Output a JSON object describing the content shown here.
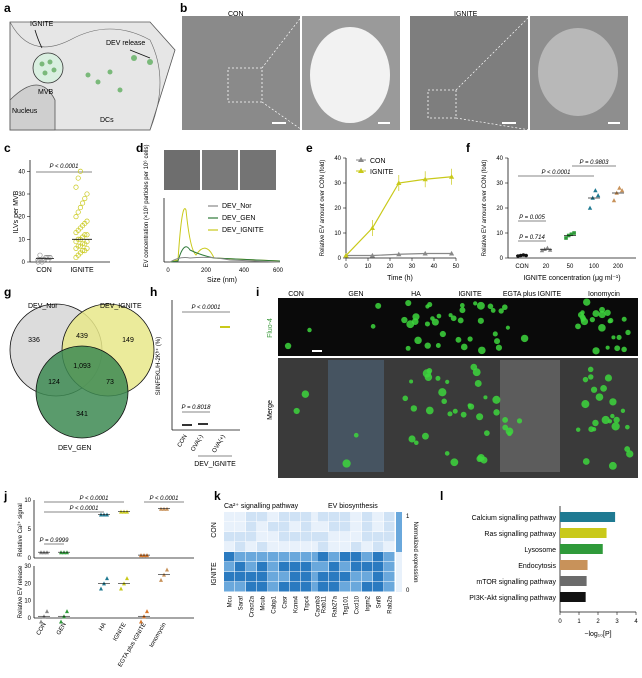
{
  "panels": {
    "a": "a",
    "b": "b",
    "c": "c",
    "d": "d",
    "e": "e",
    "f": "f",
    "g": "g",
    "h": "h",
    "i": "i",
    "j": "j",
    "k": "k",
    "l": "l"
  },
  "panel_a": {
    "ignite": "IGNITE",
    "dev_release": "DEV release",
    "mvb": "MVB",
    "nucleus": "Nucleus",
    "dcs": "DCs"
  },
  "panel_b": {
    "con": "CON",
    "ignite": "IGNITE"
  },
  "panel_c": {
    "ylabel": "ILVs per MVB",
    "pval": "P < 0.0001",
    "xticks": [
      "CON",
      "IGNITE"
    ],
    "yticks": [
      "0",
      "10",
      "20",
      "30",
      "40"
    ]
  },
  "panel_d": {
    "ylabel": "EV concentration (×10⁸ particles per 10⁶ cells)",
    "xlabel": "Size (nm)",
    "legend": [
      "DEV_Nor",
      "DEV_GEN",
      "DEV_IGNITE"
    ],
    "xticks": [
      "0",
      "200",
      "400",
      "600"
    ],
    "yticks": [
      "0",
      "2",
      "4",
      "6",
      "8",
      "10"
    ]
  },
  "panel_e": {
    "ylabel": "Relative EV amount over CON (fold)",
    "xlabel": "Time (h)",
    "legend": [
      "CON",
      "IGNITE"
    ],
    "xticks": [
      "0",
      "10",
      "20",
      "30",
      "40",
      "50"
    ],
    "yticks": [
      "0",
      "10",
      "20",
      "30",
      "40"
    ]
  },
  "panel_f": {
    "ylabel": "Relative EV amount over CON (fold)",
    "xlabel": "IGNITE concentration (μg ml⁻¹)",
    "xticks": [
      "CON",
      "20",
      "50",
      "100",
      "200"
    ],
    "yticks": [
      "0",
      "10",
      "20",
      "30",
      "40"
    ],
    "pvals": [
      "P < 0.0001",
      "P = 0.9803",
      "P = 0.005",
      "P = 0.714"
    ]
  },
  "panel_g": {
    "labels": [
      "DEV_Nor",
      "DEV_IGNITE",
      "DEV_GEN"
    ],
    "counts": [
      "336",
      "439",
      "149",
      "1,093",
      "124",
      "73",
      "341"
    ]
  },
  "panel_h": {
    "ylabel": "SIINFEKL/H-2Kᵇ⁺ (%)",
    "xticks": [
      "CON",
      "OVA(-)",
      "OVA(+)"
    ],
    "group": "DEV_IGNITE",
    "pvals": [
      "P < 0.0001",
      "P = 0.8018"
    ],
    "yticks": [
      "0",
      "10",
      "20",
      "30",
      "40",
      "50"
    ]
  },
  "panel_i": {
    "cols": [
      "CON",
      "GEN",
      "HA",
      "IGNITE",
      "EGTA plus IGNITE",
      "Ionomycin"
    ],
    "rows": [
      "Fluo-4",
      "Merge"
    ]
  },
  "panel_j": {
    "ylabel_top": "Relative Ca²⁺ signal",
    "ylabel_bot": "Relative EV release",
    "xticks": [
      "CON",
      "GEN",
      "HA",
      "IGNITE",
      "EGTA plus IGNITE",
      "Ionomycin"
    ],
    "pvals": [
      "P < 0.0001",
      "P < 0.0001",
      "P < 0.0001",
      "P = 0.9999"
    ],
    "yticks_top": [
      "0",
      "5",
      "10"
    ],
    "yticks_bot": [
      "0",
      "10",
      "20",
      "30"
    ]
  },
  "panel_k": {
    "title_left": "Ca²⁺ signalling pathway",
    "title_right": "EV biosynthesis",
    "rows": [
      "CON",
      "IGNITE"
    ],
    "genes_left": [
      "Mcu",
      "Saraf",
      "Cracr2a",
      "Mcub",
      "Cabp1",
      "Casr",
      "Kcnn4",
      "Trpc4",
      "Cacnb3"
    ],
    "genes_right": [
      "Rab11",
      "Rab27a",
      "Tsg101",
      "Cxcl10",
      "Irgm2",
      "Snf8",
      "Rab2a"
    ],
    "colorbar": "Normalized expression",
    "cb_ticks": [
      "1",
      "0"
    ]
  },
  "panel_l": {
    "xlabel": "−log₁₀[P]",
    "xticks": [
      "0",
      "1",
      "2",
      "3",
      "4"
    ],
    "bars": [
      {
        "label": "Calcium signalling pathway",
        "value": 2.9,
        "color": "#1f7a92"
      },
      {
        "label": "Ras signalling pathway",
        "value": 2.45,
        "color": "#c9c91a"
      },
      {
        "label": "Lysosome",
        "value": 2.25,
        "color": "#2f9a3a"
      },
      {
        "label": "Endocytosis",
        "value": 1.45,
        "color": "#c8925a"
      },
      {
        "label": "mTOR signalling pathway",
        "value": 1.4,
        "color": "#6b6b6b"
      },
      {
        "label": "PI3K-Akt signalling pathway",
        "value": 1.35,
        "color": "#111111"
      }
    ]
  },
  "chart_data": [
    {
      "type": "scatter",
      "panel": "c",
      "categories": [
        "CON",
        "IGNITE"
      ],
      "ylim": [
        0,
        45
      ],
      "ylabel": "ILVs per MVB",
      "means": [
        1.5,
        10
      ]
    },
    {
      "type": "line",
      "panel": "e",
      "x": [
        0,
        12,
        24,
        36,
        48
      ],
      "series": [
        {
          "name": "CON",
          "values": [
            1,
            1,
            1.5,
            1.8,
            1.8
          ]
        },
        {
          "name": "IGNITE",
          "values": [
            1,
            12,
            30,
            31.5,
            32.5
          ]
        }
      ],
      "xlabel": "Time (h)",
      "ylim": [
        0,
        40
      ]
    },
    {
      "type": "scatter",
      "panel": "f",
      "categories": [
        "CON",
        "20",
        "50",
        "100",
        "200"
      ],
      "means": [
        1,
        3.5,
        9,
        24,
        26
      ],
      "ylim": [
        0,
        40
      ]
    },
    {
      "type": "bar",
      "panel": "l",
      "categories": [
        "Calcium signalling pathway",
        "Ras signalling pathway",
        "Lysosome",
        "Endocytosis",
        "mTOR signalling pathway",
        "PI3K-Akt signalling pathway"
      ],
      "values": [
        2.9,
        2.45,
        2.25,
        1.45,
        1.4,
        1.35
      ],
      "xlabel": "−log₁₀[P]",
      "xlim": [
        0,
        4
      ]
    }
  ]
}
